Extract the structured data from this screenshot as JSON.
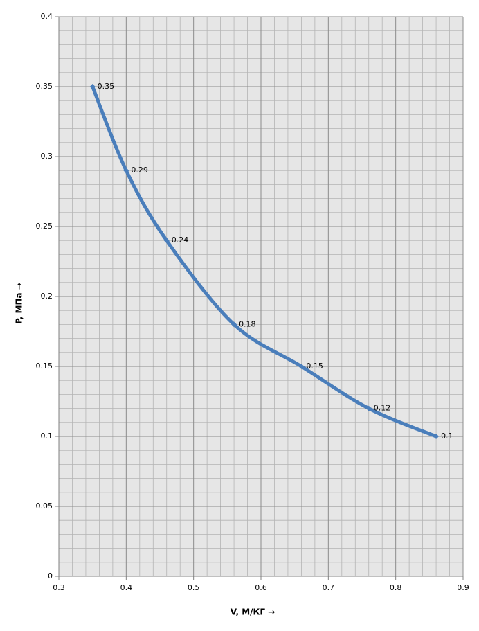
{
  "chart_data": {
    "type": "line",
    "x_label": "V, М/КГ →",
    "y_label": "P, МПа →",
    "x": [
      0.35,
      0.4,
      0.46,
      0.56,
      0.66,
      0.76,
      0.86
    ],
    "series": [
      {
        "color": "#4a7ebb",
        "values": [
          0.35,
          0.29,
          0.24,
          0.18,
          0.15,
          0.12,
          0.1
        ]
      }
    ],
    "xlim": [
      0.3,
      0.9
    ],
    "xticks": [
      0.3,
      0.4,
      0.5,
      0.6,
      0.7,
      0.8,
      0.9
    ],
    "ylim": [
      0,
      0.4
    ],
    "yticks": [
      0,
      0.05,
      0.1,
      0.15,
      0.2,
      0.25,
      0.3,
      0.35,
      0.4
    ],
    "grid": true,
    "data_labels": true
  }
}
